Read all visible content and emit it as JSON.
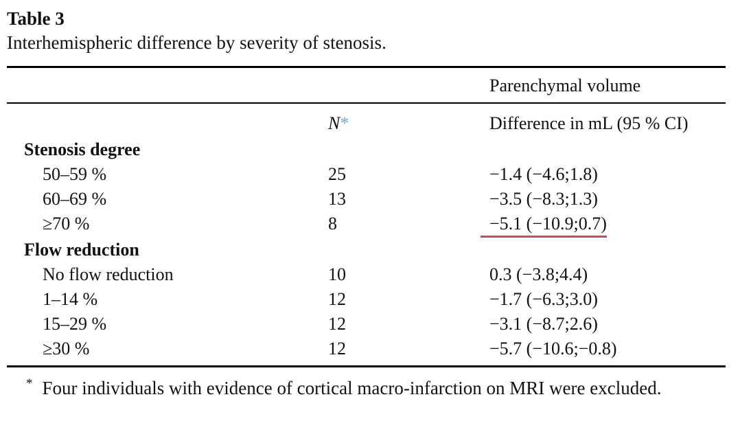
{
  "title": "Table 3",
  "caption": "Interhemispheric difference by severity of stenosis.",
  "table": {
    "span_header": "Parenchymal volume",
    "col_headers": {
      "label": "",
      "n": "N",
      "n_marker": "*",
      "difference": "Difference in mL (95 % CI)"
    },
    "groups": [
      {
        "label": "Stenosis degree",
        "rows": [
          {
            "label": "50–59 %",
            "n": "25",
            "difference": "−1.4 (−4.6;1.8)",
            "highlighted": false
          },
          {
            "label": "60–69 %",
            "n": "13",
            "difference": "−3.5 (−8.3;1.3)",
            "highlighted": false
          },
          {
            "label": "≥70 %",
            "n": "8",
            "difference": "−5.1 (−10.9;0.7)",
            "highlighted": true
          }
        ]
      },
      {
        "label": "Flow reduction",
        "rows": [
          {
            "label": "No flow reduction",
            "n": "10",
            "difference": "0.3 (−3.8;4.4)",
            "highlighted": false
          },
          {
            "label": "1–14 %",
            "n": "12",
            "difference": "−1.7 (−6.3;3.0)",
            "highlighted": false
          },
          {
            "label": "15–29 %",
            "n": "12",
            "difference": "−3.1 (−8.7;2.6)",
            "highlighted": false
          },
          {
            "label": "≥30 %",
            "n": "12",
            "difference": "−5.7 (−10.6;−0.8)",
            "highlighted": false
          }
        ]
      }
    ]
  },
  "footnote": {
    "marker": "*",
    "text": "Four individuals with evidence of cortical macro-infarction on MRI were excluded."
  },
  "colors": {
    "text": "#111111",
    "background": "#ffffff",
    "asterisk_blue": "#74a9cf",
    "underline_red": "#c4523e"
  }
}
